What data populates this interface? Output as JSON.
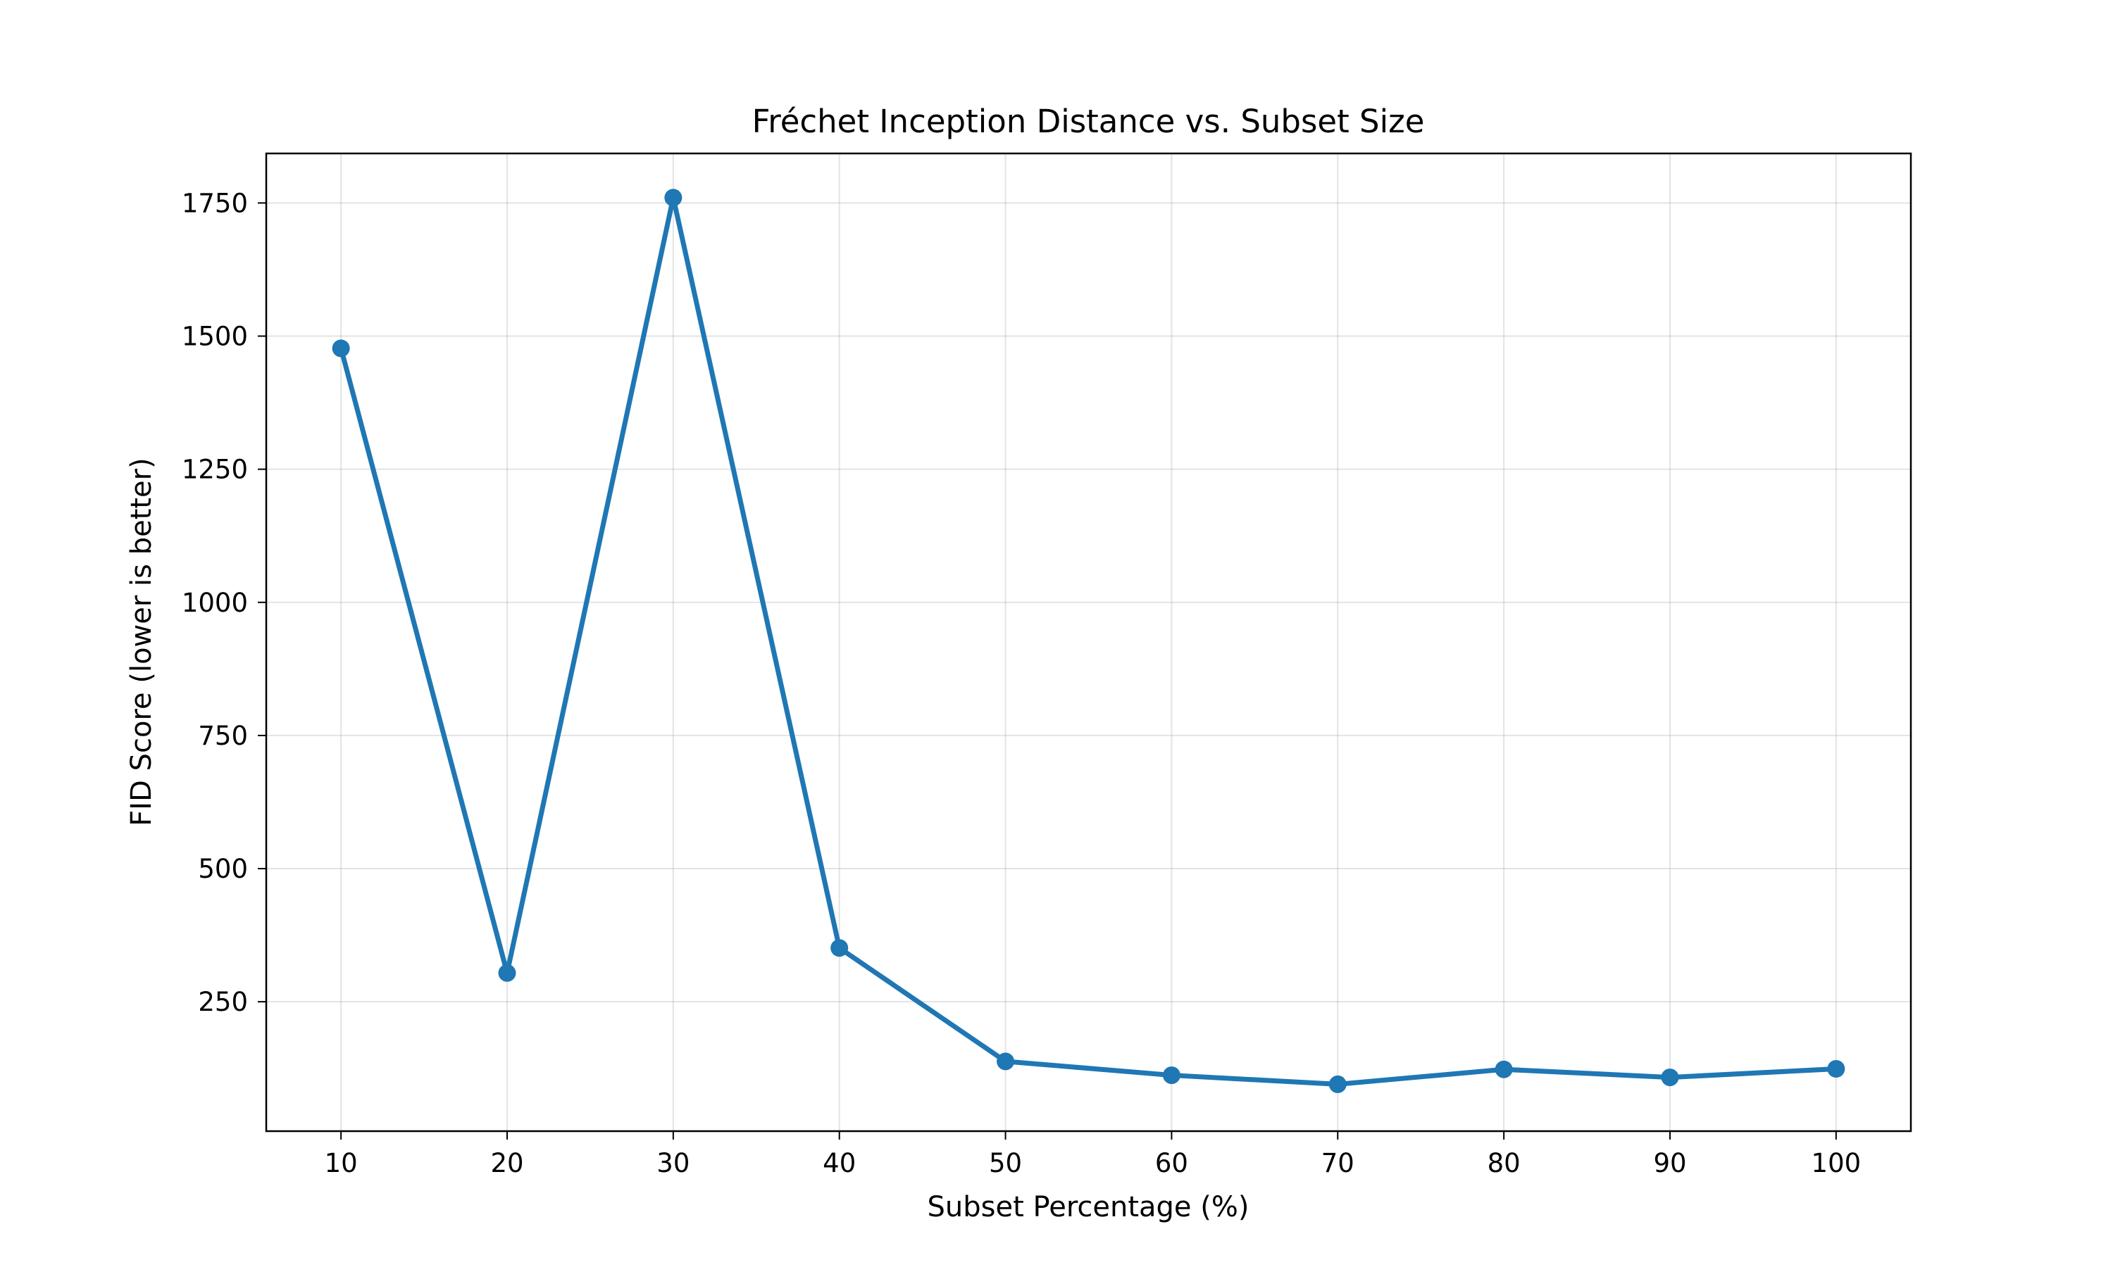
{
  "chart_data": {
    "type": "line",
    "title": "Fréchet Inception Distance vs. Subset Size",
    "xlabel": "Subset Percentage (%)",
    "ylabel": "FID Score (lower is better)",
    "x": [
      10,
      20,
      30,
      40,
      50,
      60,
      70,
      80,
      90,
      100
    ],
    "x_ticks": [
      10,
      20,
      30,
      40,
      50,
      60,
      70,
      80,
      90,
      100
    ],
    "y_ticks": [
      250,
      500,
      750,
      1000,
      1250,
      1500,
      1750
    ],
    "xlim": [
      5.5,
      104.5
    ],
    "ylim": [
      7,
      1843
    ],
    "grid": true,
    "series": [
      {
        "values": [
          1477,
          304,
          1760,
          351,
          138,
          112,
          95,
          123,
          108,
          124
        ],
        "color": "#1f77b4",
        "marker": "circle"
      }
    ]
  }
}
